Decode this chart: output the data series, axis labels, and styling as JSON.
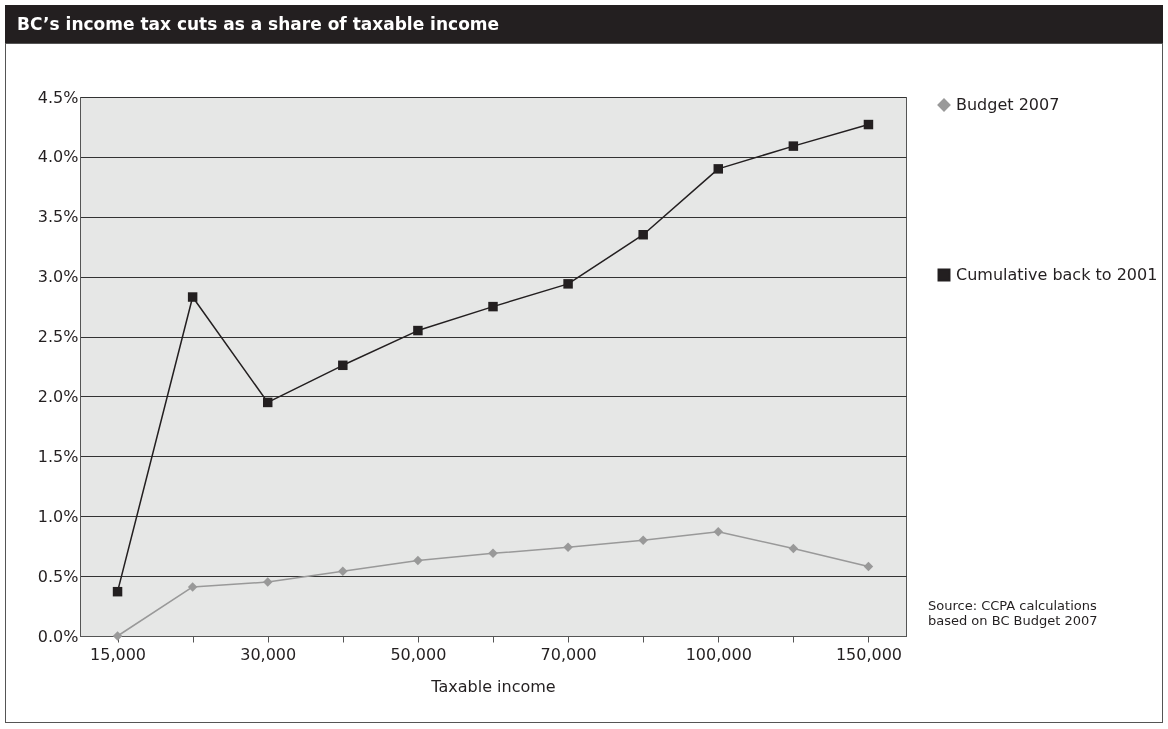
{
  "chart_data": {
    "type": "line",
    "title": "BC’s income tax cuts as a share of taxable income",
    "xlabel": "Taxable income",
    "categories": [
      "15,000",
      null,
      "30,000",
      null,
      "50,000",
      null,
      "70,000",
      null,
      "100,000",
      null,
      "150,000"
    ],
    "series": [
      {
        "name": "Budget 2007",
        "color": "#999999",
        "marker": "diamond",
        "values": [
          0.0,
          0.41,
          0.45,
          0.54,
          0.63,
          0.69,
          0.74,
          0.8,
          0.87,
          0.73,
          0.58
        ]
      },
      {
        "name": "Cumulative back to 2001",
        "color": "#231f20",
        "marker": "square",
        "values": [
          0.37,
          2.83,
          1.95,
          2.26,
          2.55,
          2.75,
          2.94,
          3.35,
          3.9,
          4.09,
          4.27
        ]
      }
    ],
    "ylim": [
      0,
      4.5
    ],
    "yticks": [
      {
        "value": 0,
        "label": "0.0%"
      },
      {
        "value": 0.5,
        "label": "0.5%"
      },
      {
        "value": 1,
        "label": "1.0%"
      },
      {
        "value": 1.5,
        "label": "1.5%"
      },
      {
        "value": 2,
        "label": "2.0%"
      },
      {
        "value": 2.5,
        "label": "2.5%"
      },
      {
        "value": 3,
        "label": "3.0%"
      },
      {
        "value": 3.5,
        "label": "3.5%"
      },
      {
        "value": 4,
        "label": "4.0%"
      },
      {
        "value": 4.5,
        "label": "4.5%"
      }
    ],
    "grid": "y",
    "legend": "right",
    "annotations": [
      "Source: CCPA calculations based on BC Budget 2007"
    ]
  }
}
